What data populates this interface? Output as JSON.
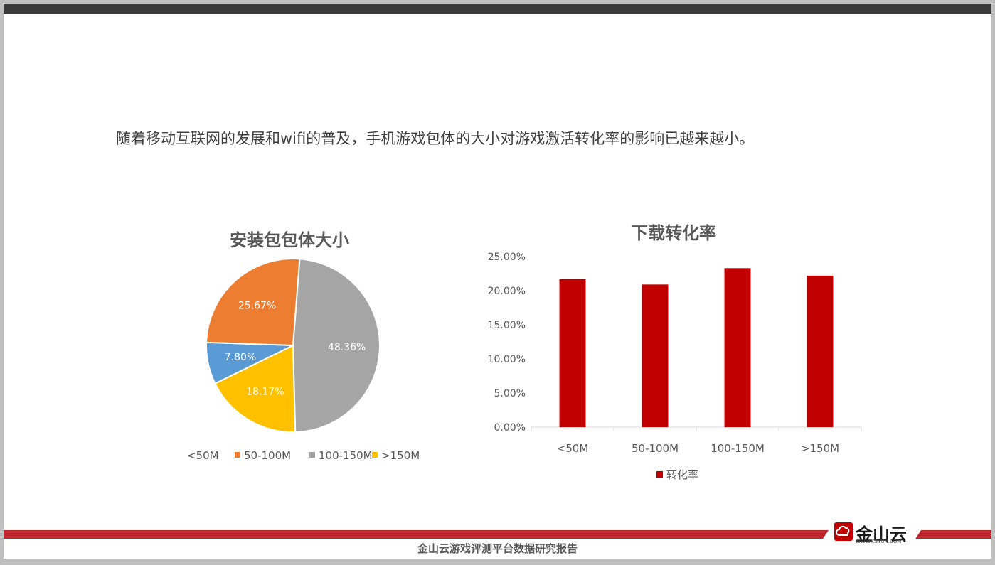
{
  "headline": "随着移动互联网的发展和wifi的普及，手机游戏包体的大小对游戏激活转化率的影响已越来越小。",
  "footer": {
    "text": "金山云游戏评测平台数据研究报告"
  },
  "logo": {
    "name": "金山云",
    "sub": "WWW.KSYUN.COM"
  },
  "colors": {
    "topbar": "#3a3a3a",
    "accent_red": "#c00000",
    "footer_red": "#c0262d"
  },
  "chart_data": [
    {
      "type": "pie",
      "title": "安装包包体大小",
      "categories": [
        "<50M",
        "50-100M",
        "100-150M",
        ">150M"
      ],
      "legend_labels": [
        "<50M",
        "50-100M",
        "100-150M",
        ">150M"
      ],
      "values": [
        7.8,
        25.67,
        48.36,
        18.17
      ],
      "labels": [
        "7.80%",
        "25.67%",
        "48.36%",
        "18.17%"
      ],
      "colors": [
        "#5b9bd5",
        "#ed7d31",
        "#a5a5a5",
        "#ffc000"
      ],
      "legend_position": "bottom"
    },
    {
      "type": "bar",
      "title": "下载转化率",
      "categories": [
        "<50M",
        "50-100M",
        "100-150M",
        ">150M"
      ],
      "series": [
        {
          "name": "转化率",
          "values": [
            21.7,
            20.9,
            23.3,
            22.2
          ],
          "color": "#c00000"
        }
      ],
      "yticks": [
        "0.00%",
        "5.00%",
        "10.00%",
        "15.00%",
        "20.00%",
        "25.00%"
      ],
      "ylim": [
        0,
        25
      ],
      "grid": false,
      "legend_position": "bottom"
    }
  ]
}
